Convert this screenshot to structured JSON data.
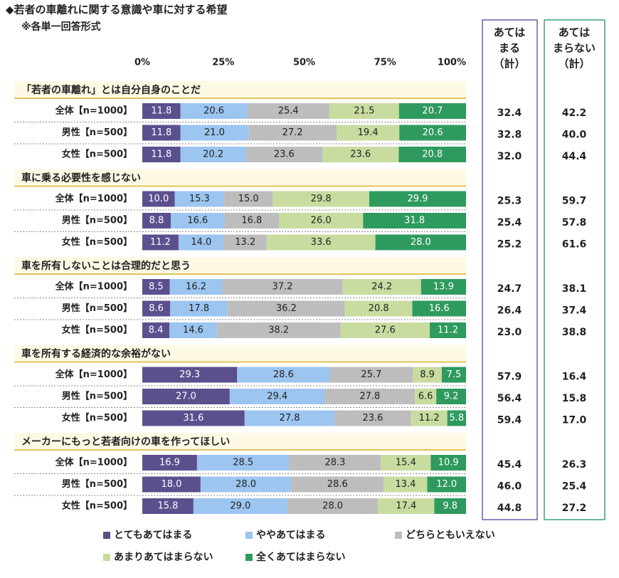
{
  "chart_data": {
    "type": "stacked-bar-h",
    "title": "◆若者の車離れに関する意識や車に対する希望",
    "subtitle": "※各単一回答形式",
    "xlim": [
      0,
      100
    ],
    "xticks": [
      {
        "value": 0,
        "label": "0%"
      },
      {
        "value": 25,
        "label": "25%"
      },
      {
        "value": 50,
        "label": "50%"
      },
      {
        "value": 75,
        "label": "75%"
      },
      {
        "value": 100,
        "label": "100%"
      }
    ],
    "series": [
      {
        "name": "とてもあてはまる",
        "color": "#5c4f8e"
      },
      {
        "name": "ややあてはまる",
        "color": "#9cc5f0"
      },
      {
        "name": "どちらともいえない",
        "color": "#bdbdbd"
      },
      {
        "name": "あまりあてはまらない",
        "color": "#c8dca0"
      },
      {
        "name": "全くあてはまらない",
        "color": "#2f9a5e"
      }
    ],
    "table_headers": [
      [
        "あては",
        "まる",
        "（計）"
      ],
      [
        "あては",
        "まらない",
        "（計）"
      ]
    ],
    "groups": [
      {
        "title": "「若者の車離れ」とは自分自身のことだ",
        "rows": [
          {
            "label": "全体【n=1000】",
            "values": [
              11.8,
              20.6,
              25.4,
              21.5,
              20.7
            ],
            "value_labels": [
              "11.8",
              "20.6",
              "25.4",
              "21.5",
              "20.7"
            ],
            "sums": [
              32.4,
              42.2
            ],
            "sum_labels": [
              "32.4",
              "42.2"
            ]
          },
          {
            "label": "男性【n=500】",
            "values": [
              11.8,
              21.0,
              27.2,
              19.4,
              20.6
            ],
            "value_labels": [
              "11.8",
              "21.0",
              "27.2",
              "19.4",
              "20.6"
            ],
            "sums": [
              32.8,
              40.0
            ],
            "sum_labels": [
              "32.8",
              "40.0"
            ]
          },
          {
            "label": "女性【n=500】",
            "values": [
              11.8,
              20.2,
              23.6,
              23.6,
              20.8
            ],
            "value_labels": [
              "11.8",
              "20.2",
              "23.6",
              "23.6",
              "20.8"
            ],
            "sums": [
              32.0,
              44.4
            ],
            "sum_labels": [
              "32.0",
              "44.4"
            ]
          }
        ]
      },
      {
        "title": "車に乗る必要性を感じない",
        "rows": [
          {
            "label": "全体【n=1000】",
            "values": [
              10.0,
              15.3,
              15.0,
              29.8,
              29.9
            ],
            "value_labels": [
              "10.0",
              "15.3",
              "15.0",
              "29.8",
              "29.9"
            ],
            "sums": [
              25.3,
              59.7
            ],
            "sum_labels": [
              "25.3",
              "59.7"
            ]
          },
          {
            "label": "男性【n=500】",
            "values": [
              8.8,
              16.6,
              16.8,
              26.0,
              31.8
            ],
            "value_labels": [
              "8.8",
              "16.6",
              "16.8",
              "26.0",
              "31.8"
            ],
            "sums": [
              25.4,
              57.8
            ],
            "sum_labels": [
              "25.4",
              "57.8"
            ]
          },
          {
            "label": "女性【n=500】",
            "values": [
              11.2,
              14.0,
              13.2,
              33.6,
              28.0
            ],
            "value_labels": [
              "11.2",
              "14.0",
              "13.2",
              "33.6",
              "28.0"
            ],
            "sums": [
              25.2,
              61.6
            ],
            "sum_labels": [
              "25.2",
              "61.6"
            ]
          }
        ]
      },
      {
        "title": "車を所有しないことは合理的だと思う",
        "rows": [
          {
            "label": "全体【n=1000】",
            "values": [
              8.5,
              16.2,
              37.2,
              24.2,
              13.9
            ],
            "value_labels": [
              "8.5",
              "16.2",
              "37.2",
              "24.2",
              "13.9"
            ],
            "sums": [
              24.7,
              38.1
            ],
            "sum_labels": [
              "24.7",
              "38.1"
            ]
          },
          {
            "label": "男性【n=500】",
            "values": [
              8.6,
              17.8,
              36.2,
              20.8,
              16.6
            ],
            "value_labels": [
              "8.6",
              "17.8",
              "36.2",
              "20.8",
              "16.6"
            ],
            "sums": [
              26.4,
              37.4
            ],
            "sum_labels": [
              "26.4",
              "37.4"
            ]
          },
          {
            "label": "女性【n=500】",
            "values": [
              8.4,
              14.6,
              38.2,
              27.6,
              11.2
            ],
            "value_labels": [
              "8.4",
              "14.6",
              "38.2",
              "27.6",
              "11.2"
            ],
            "sums": [
              23.0,
              38.8
            ],
            "sum_labels": [
              "23.0",
              "38.8"
            ]
          }
        ]
      },
      {
        "title": "車を所有する経済的な余裕がない",
        "rows": [
          {
            "label": "全体【n=1000】",
            "values": [
              29.3,
              28.6,
              25.7,
              8.9,
              7.5
            ],
            "value_labels": [
              "29.3",
              "28.6",
              "25.7",
              "8.9",
              "7.5"
            ],
            "sums": [
              57.9,
              16.4
            ],
            "sum_labels": [
              "57.9",
              "16.4"
            ]
          },
          {
            "label": "男性【n=500】",
            "values": [
              27.0,
              29.4,
              27.8,
              6.6,
              9.2
            ],
            "value_labels": [
              "27.0",
              "29.4",
              "27.8",
              "6.6",
              "9.2"
            ],
            "sums": [
              56.4,
              15.8
            ],
            "sum_labels": [
              "56.4",
              "15.8"
            ]
          },
          {
            "label": "女性【n=500】",
            "values": [
              31.6,
              27.8,
              23.6,
              11.2,
              5.8
            ],
            "value_labels": [
              "31.6",
              "27.8",
              "23.6",
              "11.2",
              "5.8"
            ],
            "sums": [
              59.4,
              17.0
            ],
            "sum_labels": [
              "59.4",
              "17.0"
            ]
          }
        ]
      },
      {
        "title": "メーカーにもっと若者向けの車を作ってほしい",
        "rows": [
          {
            "label": "全体【n=1000】",
            "values": [
              16.9,
              28.5,
              28.3,
              15.4,
              10.9
            ],
            "value_labels": [
              "16.9",
              "28.5",
              "28.3",
              "15.4",
              "10.9"
            ],
            "sums": [
              45.4,
              26.3
            ],
            "sum_labels": [
              "45.4",
              "26.3"
            ]
          },
          {
            "label": "男性【n=500】",
            "values": [
              18.0,
              28.0,
              28.6,
              13.4,
              12.0
            ],
            "value_labels": [
              "18.0",
              "28.0",
              "28.6",
              "13.4",
              "12.0"
            ],
            "sums": [
              46.0,
              25.4
            ],
            "sum_labels": [
              "46.0",
              "25.4"
            ]
          },
          {
            "label": "女性【n=500】",
            "values": [
              15.8,
              29.0,
              28.0,
              17.4,
              9.8
            ],
            "value_labels": [
              "15.8",
              "29.0",
              "28.0",
              "17.4",
              "9.8"
            ],
            "sums": [
              44.8,
              27.2
            ],
            "sum_labels": [
              "44.8",
              "27.2"
            ]
          }
        ]
      }
    ]
  }
}
